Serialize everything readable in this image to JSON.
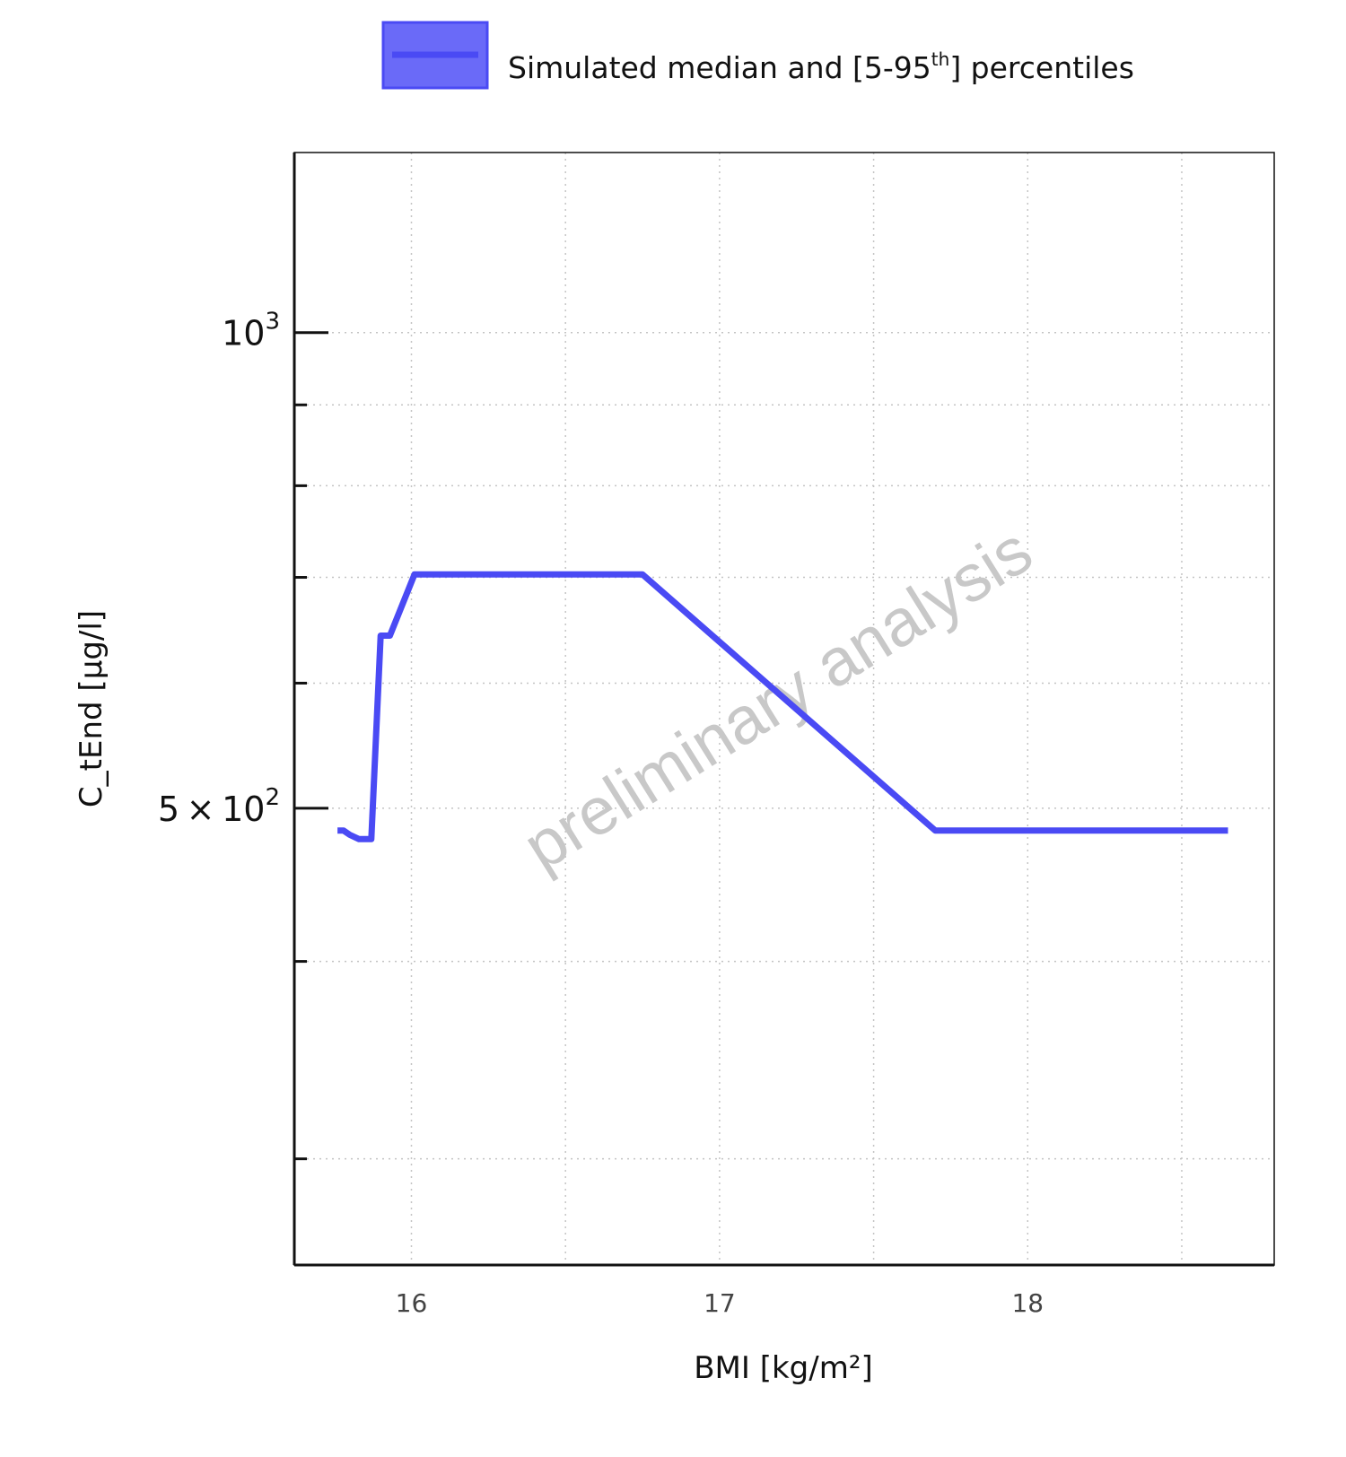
{
  "chart_data": {
    "type": "line",
    "x_scale": "linear",
    "y_scale": "log",
    "xlabel": "BMI [kg/m²]",
    "ylabel": "C_tEnd [µg/l]",
    "xlim": [
      15.62,
      18.8
    ],
    "ylim": [
      257,
      1300
    ],
    "x_ticks": [
      16,
      17,
      18
    ],
    "x_minor_ticks": [
      16.5,
      17.5,
      18.5
    ],
    "y_major_ticks": [
      {
        "value": 500,
        "label": "5 × 10",
        "exp": "2"
      },
      {
        "value": 1000,
        "label": "10",
        "exp": "3"
      }
    ],
    "y_minor_ticks": [
      300,
      400,
      600,
      700,
      800,
      900
    ],
    "grid": true,
    "legend": {
      "position": "top",
      "label": "Simulated median and [5-95",
      "label_sup": "th",
      "label_end": "] percentiles"
    },
    "watermark": "preliminary analysis",
    "series": [
      {
        "name": "Simulated median and [5-95th] percentiles",
        "color": "#4a4af4",
        "x": [
          15.76,
          15.78,
          15.8,
          15.83,
          15.87,
          15.9,
          15.93,
          16.01,
          16.75,
          17.7,
          18.65
        ],
        "y": [
          484,
          484,
          481,
          478,
          478,
          643,
          643,
          703,
          703,
          484,
          484
        ]
      }
    ]
  }
}
